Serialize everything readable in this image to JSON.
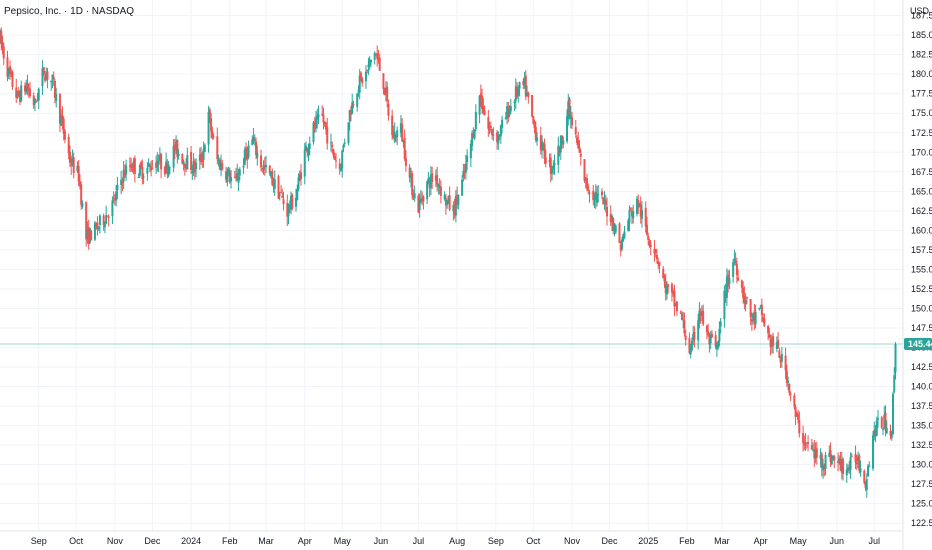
{
  "chart_data": {
    "type": "candlestick",
    "title": "Pepsico, Inc. · 1D · NASDAQ",
    "currency": "USD",
    "ylim": [
      121.5,
      189.5
    ],
    "y_ticks": [
      122.5,
      125.0,
      127.5,
      130.0,
      132.5,
      135.0,
      137.5,
      140.0,
      142.5,
      145.0,
      147.5,
      150.0,
      152.5,
      155.0,
      157.5,
      160.0,
      162.5,
      165.0,
      167.5,
      170.0,
      172.5,
      175.0,
      177.5,
      180.0,
      182.5,
      185.0,
      187.5
    ],
    "x_ticks": [
      {
        "label": "Sep",
        "date": "2023-09-01"
      },
      {
        "label": "Oct",
        "date": "2023-10-01"
      },
      {
        "label": "Nov",
        "date": "2023-11-01"
      },
      {
        "label": "Dec",
        "date": "2023-12-01"
      },
      {
        "label": "2024",
        "date": "2024-01-01"
      },
      {
        "label": "Feb",
        "date": "2024-02-01"
      },
      {
        "label": "Mar",
        "date": "2024-03-01"
      },
      {
        "label": "Apr",
        "date": "2024-04-01"
      },
      {
        "label": "May",
        "date": "2024-05-01"
      },
      {
        "label": "Jun",
        "date": "2024-06-01"
      },
      {
        "label": "Jul",
        "date": "2024-07-01"
      },
      {
        "label": "Aug",
        "date": "2024-08-01"
      },
      {
        "label": "Sep",
        "date": "2024-09-01"
      },
      {
        "label": "Oct",
        "date": "2024-10-01"
      },
      {
        "label": "Nov",
        "date": "2024-11-01"
      },
      {
        "label": "Dec",
        "date": "2024-12-01"
      },
      {
        "label": "2025",
        "date": "2025-01-01"
      },
      {
        "label": "Feb",
        "date": "2025-02-01"
      },
      {
        "label": "Mar",
        "date": "2025-03-01"
      },
      {
        "label": "Apr",
        "date": "2025-04-01"
      },
      {
        "label": "May",
        "date": "2025-05-01"
      },
      {
        "label": "Jun",
        "date": "2025-06-01"
      },
      {
        "label": "Jul",
        "date": "2025-07-01"
      }
    ],
    "x_range": [
      "2023-08-01",
      "2025-07-24"
    ],
    "last_price": 145.44,
    "last_price_label": "145.44",
    "up_color": "#26a69a",
    "down_color": "#ef5350",
    "price_line_color": "#26a69a",
    "close_path": [
      {
        "date": "2023-08-01",
        "close": 184.5
      },
      {
        "date": "2023-08-08",
        "close": 180.0
      },
      {
        "date": "2023-08-15",
        "close": 177.0
      },
      {
        "date": "2023-08-22",
        "close": 178.5
      },
      {
        "date": "2023-08-29",
        "close": 176.0
      },
      {
        "date": "2023-09-05",
        "close": 180.5
      },
      {
        "date": "2023-09-12",
        "close": 179.0
      },
      {
        "date": "2023-09-19",
        "close": 174.0
      },
      {
        "date": "2023-09-26",
        "close": 169.0
      },
      {
        "date": "2023-10-03",
        "close": 167.0
      },
      {
        "date": "2023-10-09",
        "close": 159.0
      },
      {
        "date": "2023-10-16",
        "close": 160.0
      },
      {
        "date": "2023-10-23",
        "close": 161.5
      },
      {
        "date": "2023-10-31",
        "close": 163.5
      },
      {
        "date": "2023-11-07",
        "close": 167.0
      },
      {
        "date": "2023-11-14",
        "close": 168.5
      },
      {
        "date": "2023-11-21",
        "close": 167.5
      },
      {
        "date": "2023-11-28",
        "close": 168.0
      },
      {
        "date": "2023-12-05",
        "close": 169.0
      },
      {
        "date": "2023-12-12",
        "close": 168.0
      },
      {
        "date": "2023-12-19",
        "close": 170.5
      },
      {
        "date": "2023-12-27",
        "close": 169.0
      },
      {
        "date": "2024-01-04",
        "close": 168.0
      },
      {
        "date": "2024-01-10",
        "close": 169.5
      },
      {
        "date": "2024-01-15",
        "close": 174.5
      },
      {
        "date": "2024-01-22",
        "close": 169.0
      },
      {
        "date": "2024-01-29",
        "close": 167.5
      },
      {
        "date": "2024-02-05",
        "close": 166.0
      },
      {
        "date": "2024-02-12",
        "close": 169.0
      },
      {
        "date": "2024-02-19",
        "close": 171.5
      },
      {
        "date": "2024-02-26",
        "close": 168.5
      },
      {
        "date": "2024-03-04",
        "close": 167.0
      },
      {
        "date": "2024-03-11",
        "close": 165.0
      },
      {
        "date": "2024-03-18",
        "close": 162.5
      },
      {
        "date": "2024-03-25",
        "close": 164.5
      },
      {
        "date": "2024-04-01",
        "close": 170.0
      },
      {
        "date": "2024-04-08",
        "close": 173.0
      },
      {
        "date": "2024-04-15",
        "close": 174.5
      },
      {
        "date": "2024-04-22",
        "close": 170.5
      },
      {
        "date": "2024-04-29",
        "close": 168.0
      },
      {
        "date": "2024-05-06",
        "close": 174.5
      },
      {
        "date": "2024-05-13",
        "close": 178.5
      },
      {
        "date": "2024-05-20",
        "close": 180.0
      },
      {
        "date": "2024-05-27",
        "close": 183.0
      },
      {
        "date": "2024-06-03",
        "close": 179.0
      },
      {
        "date": "2024-06-10",
        "close": 172.0
      },
      {
        "date": "2024-06-17",
        "close": 173.0
      },
      {
        "date": "2024-06-24",
        "close": 166.5
      },
      {
        "date": "2024-07-01",
        "close": 163.0
      },
      {
        "date": "2024-07-08",
        "close": 166.0
      },
      {
        "date": "2024-07-15",
        "close": 167.0
      },
      {
        "date": "2024-07-22",
        "close": 164.0
      },
      {
        "date": "2024-07-29",
        "close": 162.5
      },
      {
        "date": "2024-08-05",
        "close": 166.0
      },
      {
        "date": "2024-08-12",
        "close": 171.0
      },
      {
        "date": "2024-08-19",
        "close": 177.5
      },
      {
        "date": "2024-08-26",
        "close": 173.0
      },
      {
        "date": "2024-09-03",
        "close": 172.0
      },
      {
        "date": "2024-09-10",
        "close": 175.0
      },
      {
        "date": "2024-09-17",
        "close": 177.5
      },
      {
        "date": "2024-09-24",
        "close": 178.5
      },
      {
        "date": "2024-10-01",
        "close": 173.5
      },
      {
        "date": "2024-10-08",
        "close": 170.5
      },
      {
        "date": "2024-10-15",
        "close": 168.0
      },
      {
        "date": "2024-10-22",
        "close": 170.5
      },
      {
        "date": "2024-10-29",
        "close": 175.5
      },
      {
        "date": "2024-11-05",
        "close": 171.0
      },
      {
        "date": "2024-11-12",
        "close": 166.0
      },
      {
        "date": "2024-11-19",
        "close": 164.5
      },
      {
        "date": "2024-11-26",
        "close": 163.5
      },
      {
        "date": "2024-12-03",
        "close": 161.5
      },
      {
        "date": "2024-12-10",
        "close": 158.0
      },
      {
        "date": "2024-12-17",
        "close": 162.0
      },
      {
        "date": "2024-12-24",
        "close": 163.5
      },
      {
        "date": "2024-12-31",
        "close": 159.5
      },
      {
        "date": "2025-01-07",
        "close": 157.5
      },
      {
        "date": "2025-01-14",
        "close": 153.0
      },
      {
        "date": "2025-01-21",
        "close": 151.0
      },
      {
        "date": "2025-01-28",
        "close": 148.5
      },
      {
        "date": "2025-02-04",
        "close": 144.0
      },
      {
        "date": "2025-02-11",
        "close": 150.0
      },
      {
        "date": "2025-02-18",
        "close": 146.0
      },
      {
        "date": "2025-02-25",
        "close": 144.5
      },
      {
        "date": "2025-03-04",
        "close": 152.5
      },
      {
        "date": "2025-03-11",
        "close": 156.5
      },
      {
        "date": "2025-03-18",
        "close": 152.0
      },
      {
        "date": "2025-03-25",
        "close": 148.5
      },
      {
        "date": "2025-04-01",
        "close": 149.5
      },
      {
        "date": "2025-04-08",
        "close": 146.0
      },
      {
        "date": "2025-04-15",
        "close": 144.5
      },
      {
        "date": "2025-04-22",
        "close": 141.5
      },
      {
        "date": "2025-04-29",
        "close": 136.0
      },
      {
        "date": "2025-05-06",
        "close": 133.0
      },
      {
        "date": "2025-05-13",
        "close": 131.5
      },
      {
        "date": "2025-05-20",
        "close": 130.5
      },
      {
        "date": "2025-05-27",
        "close": 131.0
      },
      {
        "date": "2025-06-03",
        "close": 130.0
      },
      {
        "date": "2025-06-10",
        "close": 129.5
      },
      {
        "date": "2025-06-17",
        "close": 131.0
      },
      {
        "date": "2025-06-24",
        "close": 128.0
      },
      {
        "date": "2025-07-01",
        "close": 134.5
      },
      {
        "date": "2025-07-08",
        "close": 135.5
      },
      {
        "date": "2025-07-15",
        "close": 134.5
      },
      {
        "date": "2025-07-17",
        "close": 142.0
      },
      {
        "date": "2025-07-18",
        "close": 145.44
      }
    ]
  }
}
